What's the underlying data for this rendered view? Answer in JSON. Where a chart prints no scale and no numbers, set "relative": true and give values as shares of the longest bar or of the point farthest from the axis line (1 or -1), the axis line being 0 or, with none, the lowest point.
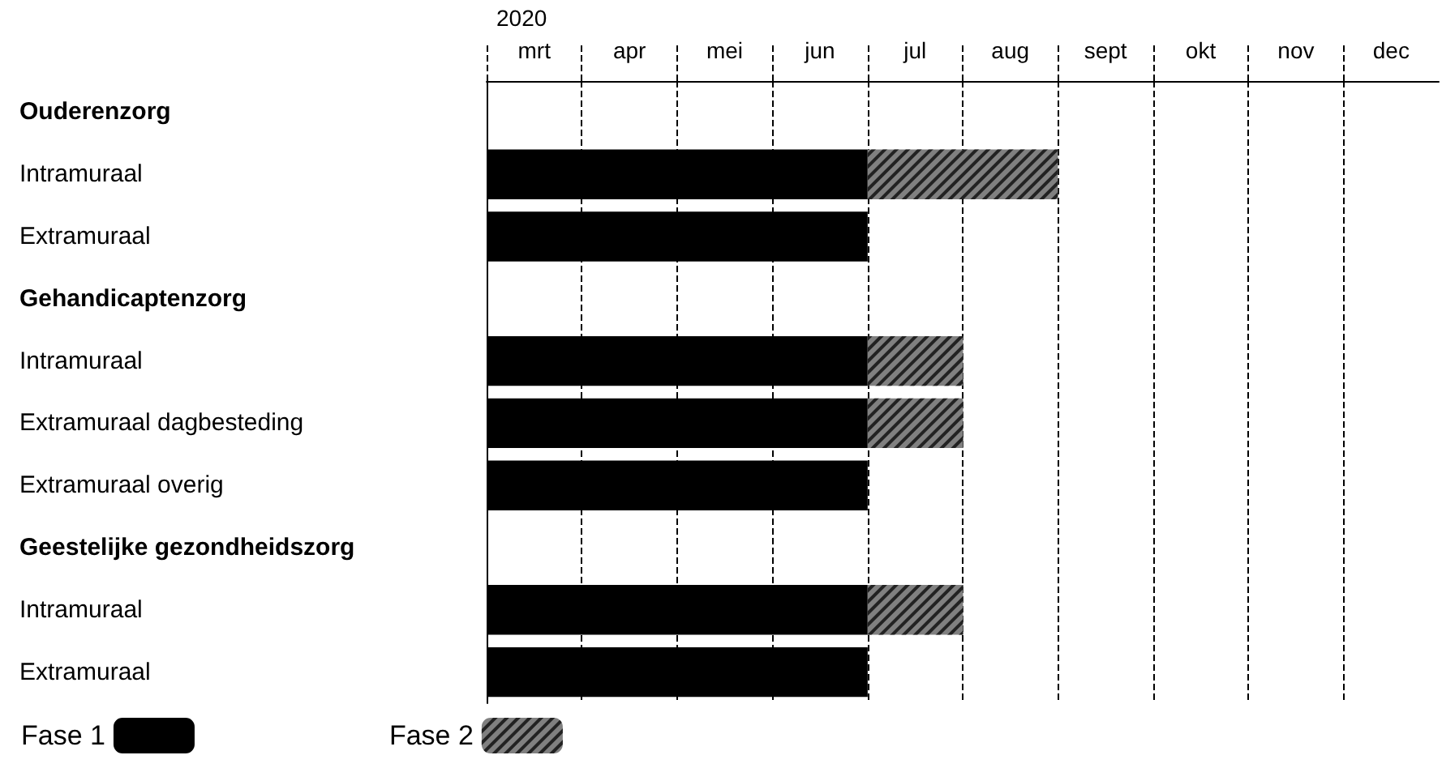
{
  "chart_data": {
    "type": "bar",
    "orientation": "horizontal",
    "stacked": true,
    "relative": true,
    "categories": [
      "Ouderenzorg",
      "Intramuraal",
      "Extramuraal",
      "Gehandicaptenzorg",
      "Intramuraal",
      "Extramuraal dagbesteding",
      "Extramuraal overig",
      "Geestelijke gezondheidszorg",
      "Intramuraal",
      "Extramuraal"
    ],
    "series": [
      {
        "name": "Fase 1",
        "color": "#000000",
        "values": [
          null,
          0.667,
          0.667,
          null,
          0.667,
          0.667,
          0.667,
          null,
          0.667,
          0.667
        ]
      },
      {
        "name": "Fase 2",
        "color": "#808080",
        "values": [
          null,
          0.333,
          null,
          null,
          0.167,
          0.167,
          null,
          null,
          0.167,
          null
        ]
      }
    ],
    "annotations": [
      "2020",
      "mrt",
      "apr",
      "mei",
      "jun",
      "jul",
      "aug",
      "sept",
      "okt",
      "nov",
      "dec"
    ],
    "grid": "x",
    "legend": "bottom left"
  }
}
